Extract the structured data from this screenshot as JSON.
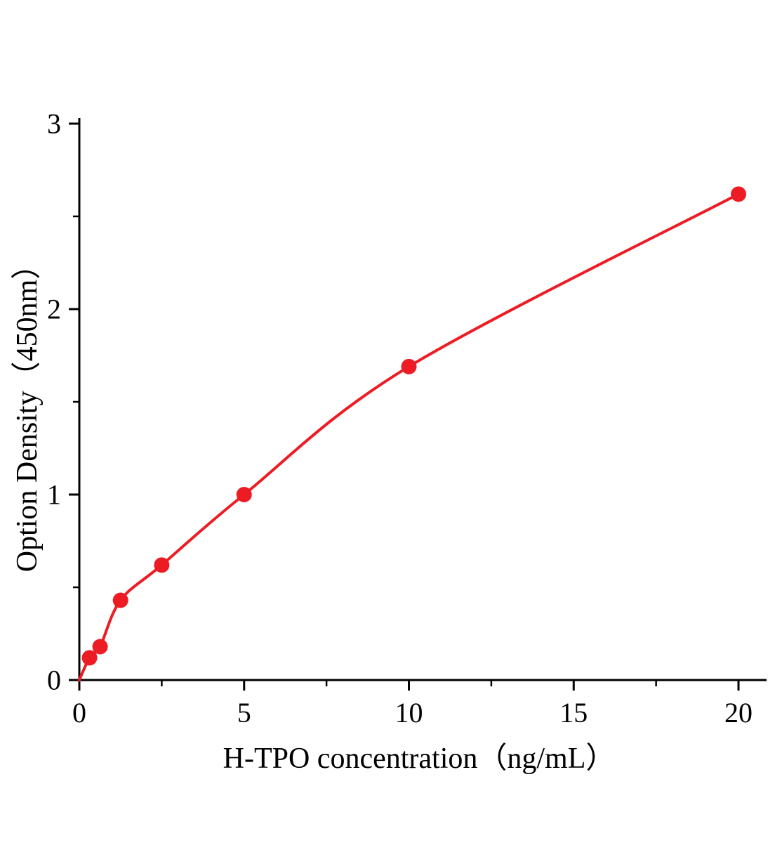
{
  "chart_data": {
    "type": "line",
    "title": "",
    "xlabel": "H-TPO concentration（ng/mL）",
    "ylabel": "Option Density（450nm）",
    "x": [
      0.31,
      0.63,
      1.25,
      2.5,
      5,
      10,
      20
    ],
    "y": [
      0.12,
      0.18,
      0.43,
      0.62,
      1.0,
      1.69,
      2.62
    ],
    "curve_start": [
      0,
      0
    ],
    "xlim": [
      0,
      20
    ],
    "ylim": [
      0,
      3
    ],
    "x_major_ticks": [
      0,
      5,
      10,
      15,
      20
    ],
    "x_minor_ticks": [
      2.5,
      7.5,
      12.5,
      17.5
    ],
    "y_major_ticks": [
      0,
      1,
      2,
      3
    ],
    "y_minor_ticks": [
      0.5,
      1.5,
      2.5
    ],
    "grid": false,
    "legend": null,
    "line_color": "#ed1c24",
    "marker_color": "#ed1c24",
    "axis_color": "#000000",
    "marker_radius": 11,
    "line_width": 4
  }
}
